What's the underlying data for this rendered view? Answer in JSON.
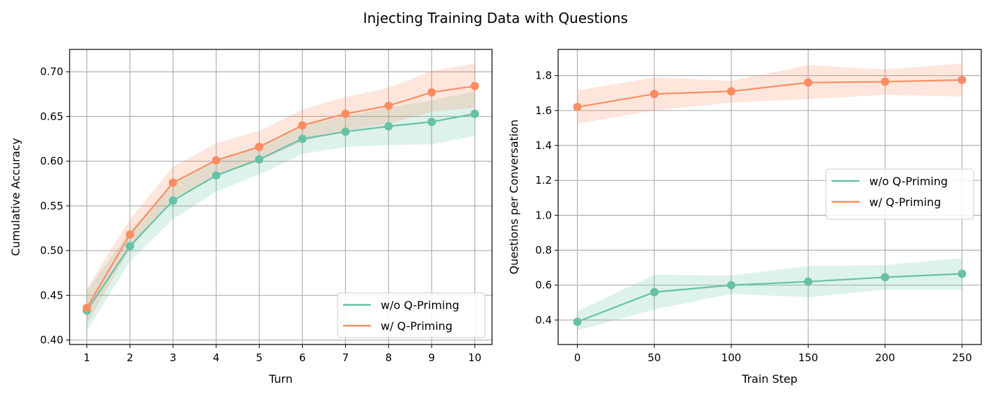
{
  "figure": {
    "title": "Injecting Training Data with Questions"
  },
  "colors": {
    "without": "#66c2a5",
    "with": "#fc8d62"
  },
  "chart_data": [
    {
      "type": "line",
      "xlabel": "Turn",
      "ylabel": "Cumulative Accuracy",
      "xlim": [
        0.6,
        10.4
      ],
      "ylim": [
        0.395,
        0.725
      ],
      "xticks": [
        1,
        2,
        3,
        4,
        5,
        6,
        7,
        8,
        9,
        10
      ],
      "yticks": [
        0.4,
        0.45,
        0.5,
        0.55,
        0.6,
        0.65,
        0.7
      ],
      "ytick_decimals": 2,
      "grid": true,
      "legend_position": "lower-right",
      "x": [
        1,
        2,
        3,
        4,
        5,
        6,
        7,
        8,
        9,
        10
      ],
      "series": [
        {
          "name": "w/o Q-Priming",
          "color_key": "without",
          "values": [
            0.433,
            0.505,
            0.556,
            0.584,
            0.602,
            0.625,
            0.633,
            0.639,
            0.644,
            0.653
          ],
          "lower": [
            0.41,
            0.488,
            0.535,
            0.566,
            0.585,
            0.608,
            0.616,
            0.618,
            0.619,
            0.628
          ],
          "upper": [
            0.455,
            0.522,
            0.575,
            0.6,
            0.618,
            0.64,
            0.65,
            0.66,
            0.668,
            0.678
          ]
        },
        {
          "name": "w/ Q-Priming",
          "color_key": "with",
          "values": [
            0.436,
            0.518,
            0.576,
            0.601,
            0.616,
            0.64,
            0.653,
            0.662,
            0.677,
            0.684
          ],
          "lower": [
            0.418,
            0.502,
            0.558,
            0.584,
            0.6,
            0.622,
            0.634,
            0.642,
            0.655,
            0.66
          ],
          "upper": [
            0.458,
            0.535,
            0.594,
            0.62,
            0.634,
            0.658,
            0.672,
            0.682,
            0.701,
            0.709
          ]
        }
      ]
    },
    {
      "type": "line",
      "xlabel": "Train Step",
      "ylabel": "Questions per Conversation",
      "xlim": [
        -12.5,
        262.5
      ],
      "ylim": [
        0.26,
        1.95
      ],
      "xticks": [
        0,
        50,
        100,
        150,
        200,
        250
      ],
      "yticks": [
        0.4,
        0.6,
        0.8,
        1.0,
        1.2,
        1.4,
        1.6,
        1.8
      ],
      "ytick_decimals": 1,
      "grid": true,
      "legend_position": "center-right",
      "x": [
        0,
        50,
        100,
        150,
        200,
        250
      ],
      "series": [
        {
          "name": "w/o Q-Priming",
          "color_key": "without",
          "values": [
            0.39,
            0.56,
            0.6,
            0.62,
            0.645,
            0.665
          ],
          "lower": [
            0.34,
            0.46,
            0.55,
            0.53,
            0.575,
            0.575
          ],
          "upper": [
            0.45,
            0.66,
            0.655,
            0.71,
            0.715,
            0.755
          ]
        },
        {
          "name": "w/ Q-Priming",
          "color_key": "with",
          "values": [
            1.62,
            1.695,
            1.71,
            1.76,
            1.765,
            1.775
          ],
          "lower": [
            1.525,
            1.6,
            1.645,
            1.665,
            1.69,
            1.68
          ],
          "upper": [
            1.715,
            1.79,
            1.77,
            1.86,
            1.835,
            1.87
          ]
        }
      ]
    }
  ]
}
